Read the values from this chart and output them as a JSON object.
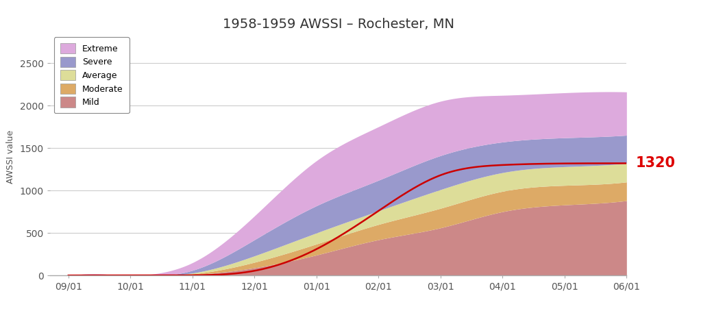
{
  "title": "1958-1959 AWSSI – Rochester, MN",
  "ylabel": "AWSSI value",
  "final_value": "1320",
  "final_value_color": "#dd0000",
  "ylim": [
    0,
    2800
  ],
  "yticks": [
    0,
    500,
    1000,
    1500,
    2000,
    2500
  ],
  "colors": {
    "mild": "#cc8888",
    "moderate": "#ddaa66",
    "average": "#dddd99",
    "severe": "#9999cc",
    "extreme": "#ddaadd"
  },
  "legend_labels": [
    "Extreme",
    "Severe",
    "Average",
    "Moderate",
    "Mild"
  ],
  "legend_colors": [
    "#ddaadd",
    "#9999cc",
    "#dddd99",
    "#ddaa66",
    "#cc8888"
  ],
  "x_tick_labels": [
    "09/01",
    "10/01",
    "11/01",
    "12/01",
    "01/01",
    "02/01",
    "03/01",
    "04/01",
    "05/01",
    "06/01"
  ],
  "background_color": "#ffffff",
  "grid_color": "#cccccc",
  "actual_line_color": "#cc0000",
  "mild_upper": [
    0,
    0,
    10,
    90,
    240,
    420,
    560,
    750,
    830,
    880
  ],
  "moderate_upper": [
    0,
    0,
    18,
    155,
    370,
    600,
    790,
    990,
    1060,
    1100
  ],
  "average_upper": [
    0,
    0,
    28,
    230,
    500,
    760,
    1010,
    1210,
    1280,
    1320
  ],
  "severe_upper": [
    0,
    0,
    60,
    420,
    820,
    1120,
    1410,
    1570,
    1620,
    1650
  ],
  "extreme_upper": [
    0,
    0,
    150,
    700,
    1350,
    1750,
    2050,
    2120,
    2150,
    2160
  ],
  "actual": [
    0,
    0,
    2,
    55,
    310,
    760,
    1180,
    1300,
    1318,
    1320
  ]
}
